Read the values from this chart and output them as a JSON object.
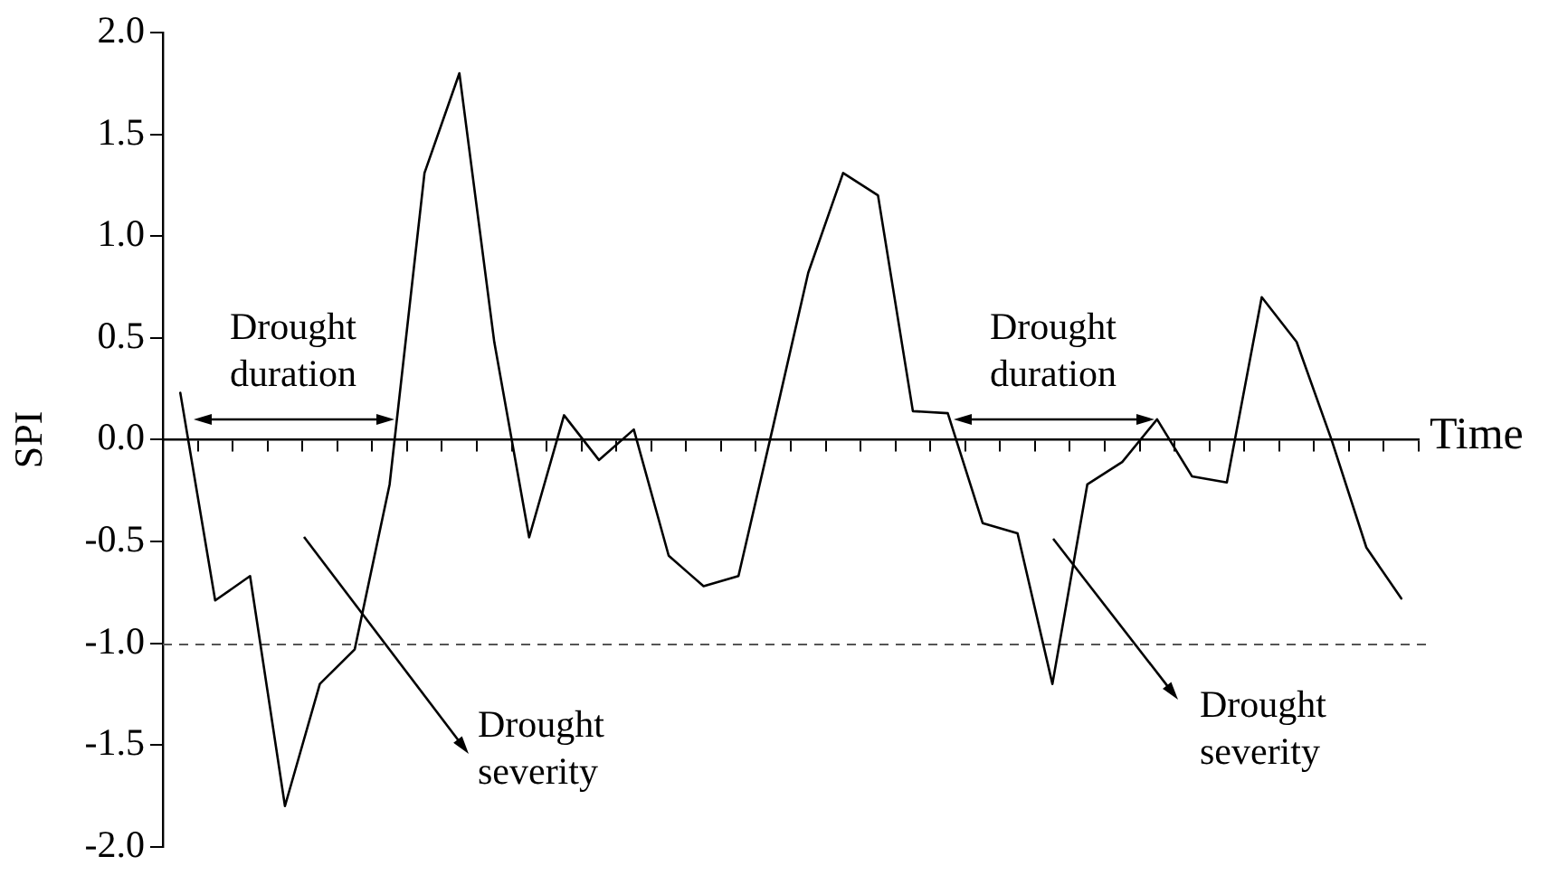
{
  "chart_data": {
    "type": "line",
    "categories": [
      null,
      null,
      null,
      null,
      null,
      null,
      null,
      null,
      null,
      null,
      null,
      null,
      null,
      null,
      null,
      null,
      null,
      null,
      null,
      null,
      null,
      null,
      null,
      null,
      null,
      null,
      null,
      null,
      null,
      null,
      null,
      null,
      null,
      null,
      null,
      null
    ],
    "series": [
      {
        "color": "#000000",
        "values": [
          0.23,
          -0.79,
          -0.67,
          -1.8,
          -1.2,
          -1.03,
          -0.22,
          1.31,
          1.8,
          0.48,
          -0.48,
          0.12,
          -0.1,
          0.05,
          -0.57,
          -0.72,
          -0.67,
          0.07,
          0.82,
          1.31,
          1.2,
          0.14,
          0.13,
          -0.41,
          -0.46,
          -1.2,
          -0.22,
          -0.11,
          0.1,
          -0.18,
          -0.21,
          0.7,
          0.48,
          0.0,
          -0.53,
          -0.78
        ]
      }
    ],
    "xlabel": "Time",
    "ylabel": "SPI",
    "ylim": [
      -2,
      2
    ],
    "yticks": [
      {
        "value": -2,
        "label": "-2.0"
      },
      {
        "value": -1.5,
        "label": "-1.5"
      },
      {
        "value": -1,
        "label": "-1.0"
      },
      {
        "value": -0.5,
        "label": "-0.5"
      },
      {
        "value": 0,
        "label": "0.0"
      },
      {
        "value": 0.5,
        "label": "0.5"
      },
      {
        "value": 1,
        "label": "1.0"
      },
      {
        "value": 1.5,
        "label": "1.5"
      },
      {
        "value": 2,
        "label": "2.0"
      }
    ],
    "tick_labels": "y",
    "marker": "none",
    "ref_lines": [
      {
        "axis": "y",
        "value": -1,
        "line_style": "dashed",
        "color": "#555555"
      }
    ],
    "annotations": [
      "Drought duration",
      "Drought duration",
      "Drought severity",
      "Drought severity"
    ]
  }
}
